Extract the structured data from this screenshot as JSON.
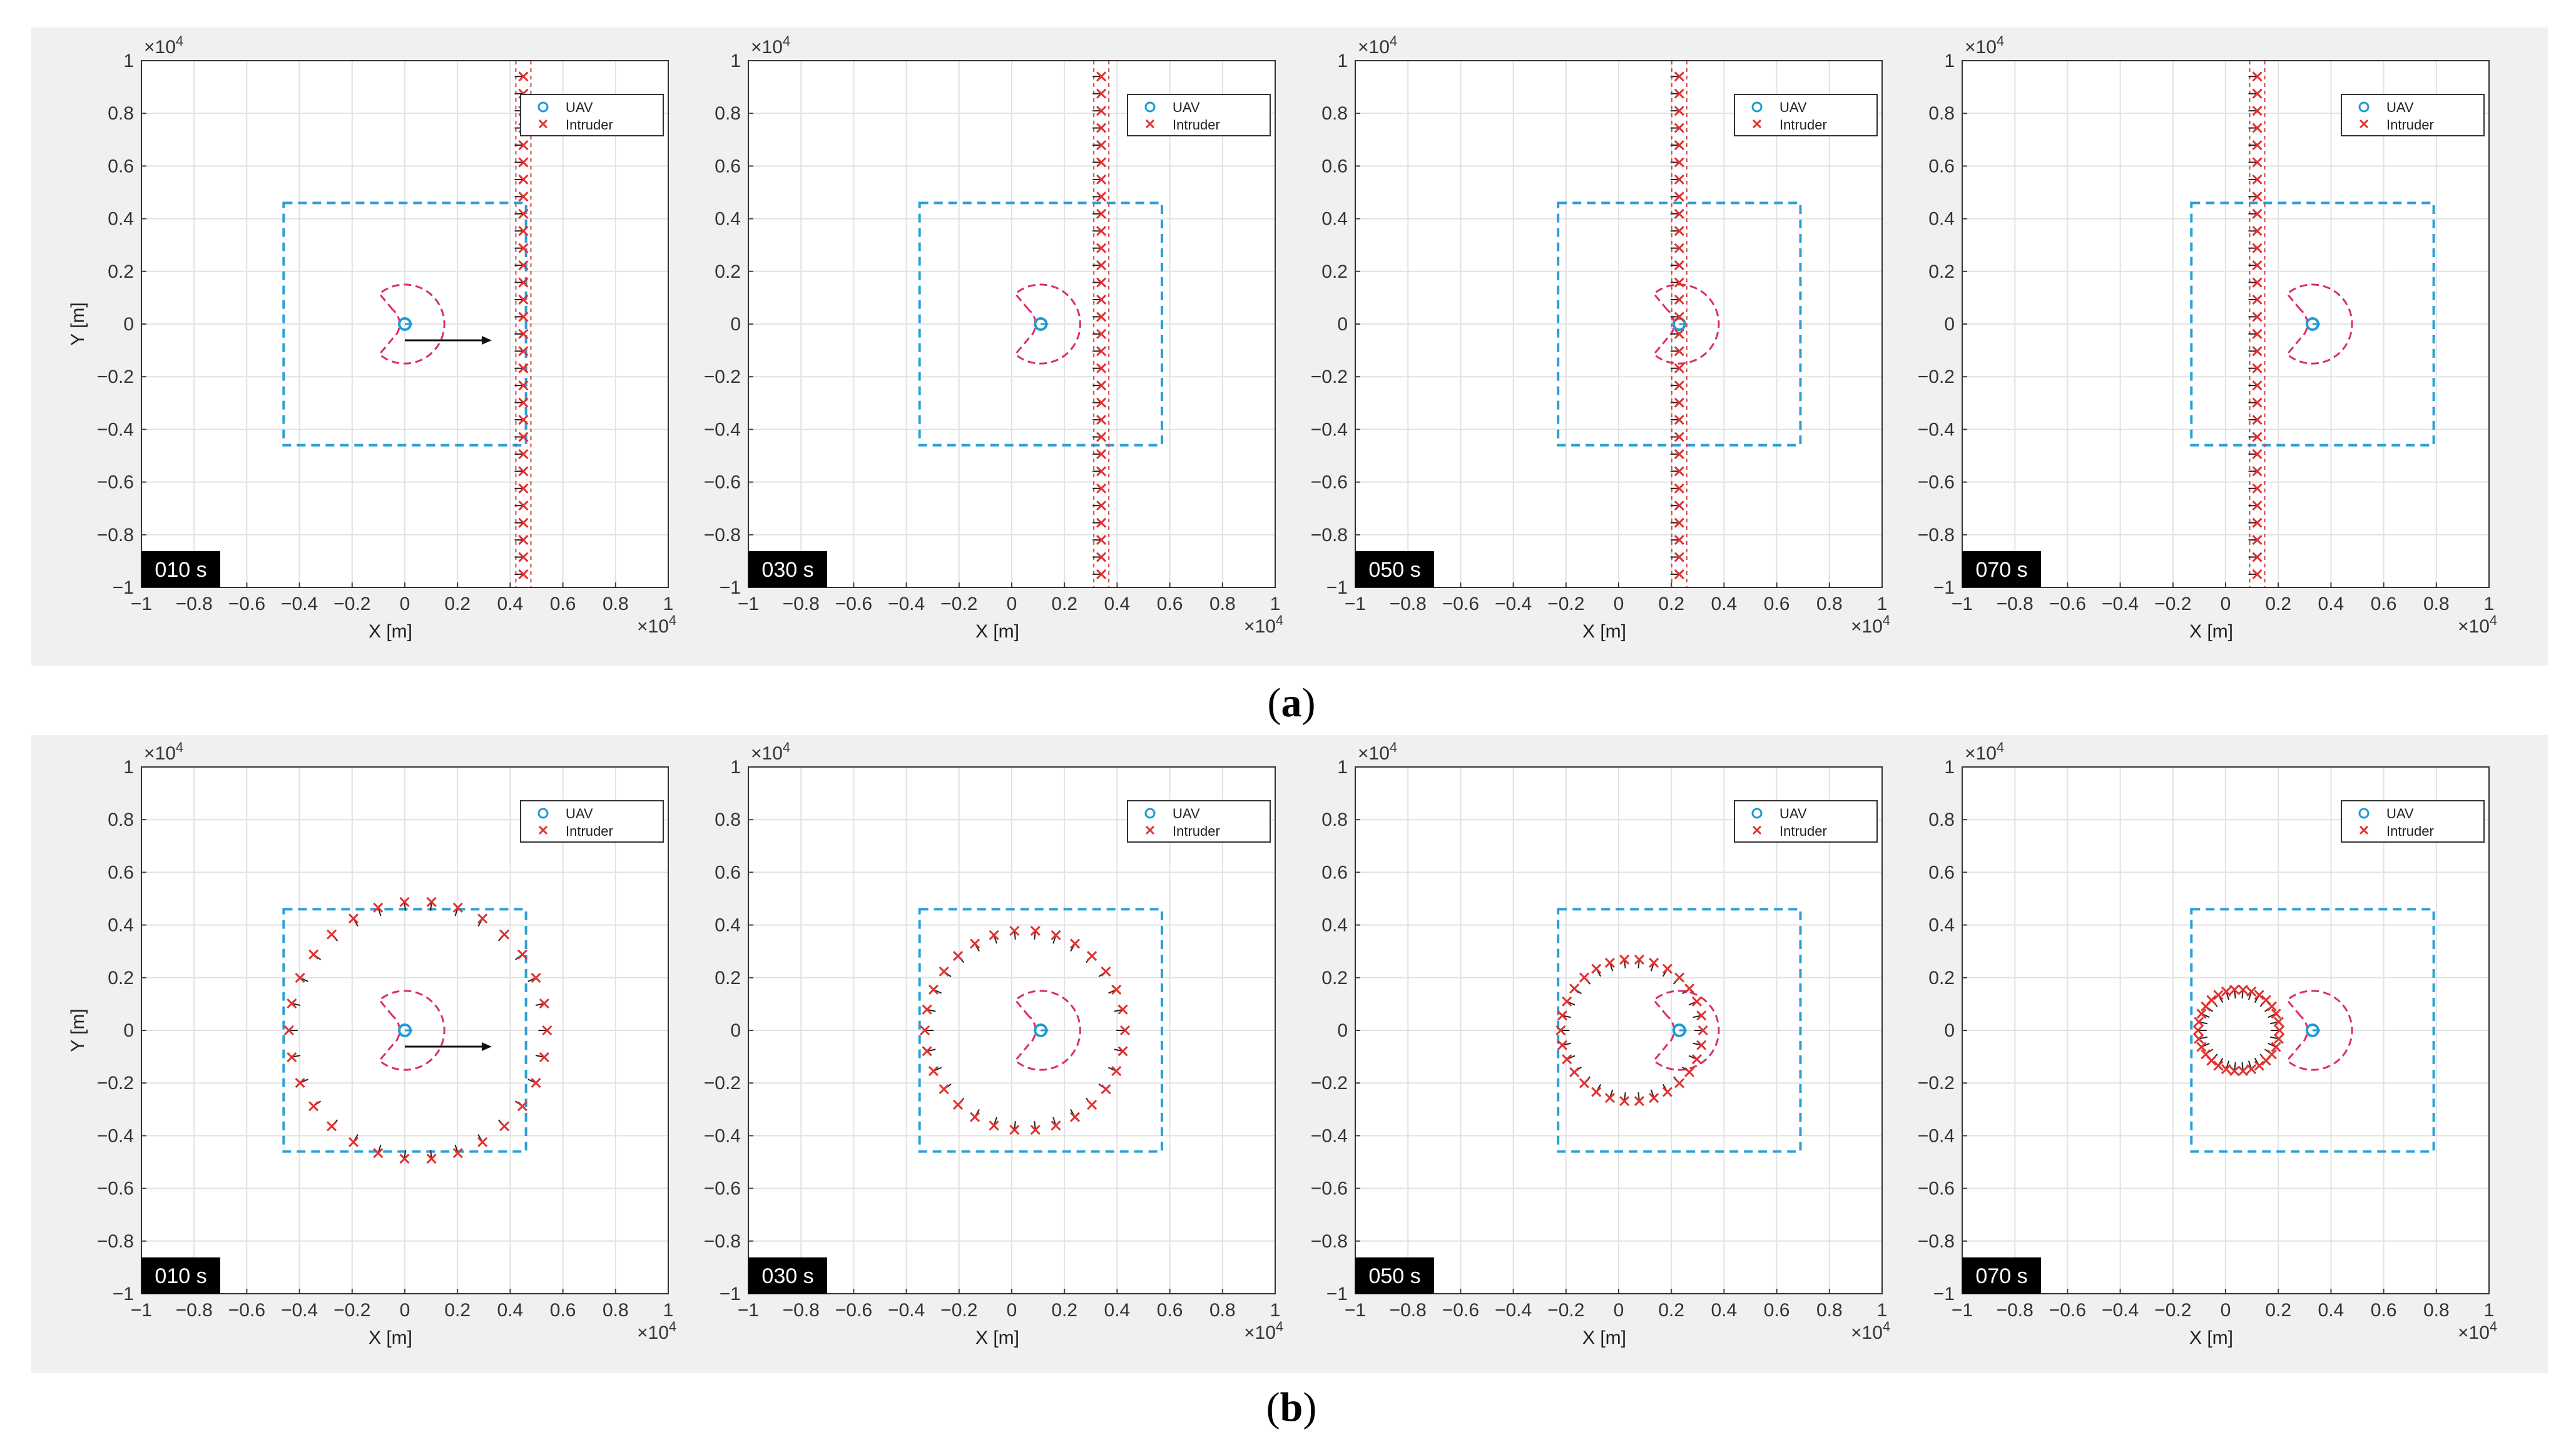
{
  "figure": {
    "row_a": {
      "label_open": "(",
      "label_letter": "a",
      "label_close": ")"
    },
    "row_b": {
      "label_open": "(",
      "label_letter": "b",
      "label_close": ")"
    }
  },
  "colors": {
    "uav": "#1f9bd6",
    "intruder": "#e03030",
    "zone": "#2aa0d8",
    "sensor": "#d8306a",
    "background": "#f0f0f0"
  },
  "axes_common": {
    "xlabel": "X   [m]",
    "ylabel": "Y   [m]",
    "x_exponent": "×10",
    "x_exponent_power": "4",
    "y_exponent": "×10",
    "y_exponent_power": "4",
    "xticks": [
      "−1",
      "−0.8",
      "−0.6",
      "−0.4",
      "−0.2",
      "0",
      "0.2",
      "0.4",
      "0.6",
      "0.8",
      "1"
    ],
    "yticks": [
      "1",
      "0.8",
      "0.6",
      "0.4",
      "0.2",
      "0",
      "−0.2",
      "−0.4",
      "−0.6",
      "−0.8",
      "−1"
    ],
    "legend": [
      {
        "label": "UAV",
        "marker": "circle"
      },
      {
        "label": "Intruder",
        "marker": "x"
      }
    ],
    "grid": true,
    "legend_position": "top-right"
  },
  "chart_data": [
    {
      "row": "a",
      "type": "scatter",
      "time_label": "010 s",
      "xlim": [
        -1,
        1
      ],
      "ylim": [
        -1,
        1
      ],
      "unit_scale": 10000,
      "uav": [
        0.0,
        0.0
      ],
      "heading_arrow": true,
      "zone_center_x": 0.0,
      "zone_half": 0.46,
      "intruder_formation": "line",
      "intruder_x": 0.45,
      "intruder_y_range": [
        -0.95,
        0.94
      ],
      "intruder_count": 30
    },
    {
      "row": "a",
      "type": "scatter",
      "time_label": "030 s",
      "xlim": [
        -1,
        1
      ],
      "ylim": [
        -1,
        1
      ],
      "unit_scale": 10000,
      "uav": [
        0.11,
        0.0
      ],
      "heading_arrow": false,
      "zone_center_x": 0.11,
      "zone_half": 0.46,
      "intruder_formation": "line",
      "intruder_x": 0.34,
      "intruder_y_range": [
        -0.95,
        0.94
      ],
      "intruder_count": 30
    },
    {
      "row": "a",
      "type": "scatter",
      "time_label": "050 s",
      "xlim": [
        -1,
        1
      ],
      "ylim": [
        -1,
        1
      ],
      "unit_scale": 10000,
      "uav": [
        0.23,
        0.0
      ],
      "heading_arrow": false,
      "zone_center_x": 0.23,
      "zone_half": 0.46,
      "intruder_formation": "line",
      "intruder_x": 0.23,
      "intruder_y_range": [
        -0.95,
        0.94
      ],
      "intruder_count": 30
    },
    {
      "row": "a",
      "type": "scatter",
      "time_label": "070 s",
      "xlim": [
        -1,
        1
      ],
      "ylim": [
        -1,
        1
      ],
      "unit_scale": 10000,
      "uav": [
        0.33,
        0.0
      ],
      "heading_arrow": false,
      "zone_center_x": 0.33,
      "zone_half": 0.46,
      "intruder_formation": "line",
      "intruder_x": 0.12,
      "intruder_y_range": [
        -0.95,
        0.94
      ],
      "intruder_count": 30
    },
    {
      "row": "b",
      "type": "scatter",
      "time_label": "010 s",
      "xlim": [
        -1,
        1
      ],
      "ylim": [
        -1,
        1
      ],
      "unit_scale": 10000,
      "uav": [
        0.0,
        0.0
      ],
      "heading_arrow": true,
      "zone_center_x": 0.0,
      "zone_half": 0.46,
      "intruder_formation": "circle",
      "circle_center": [
        0.05,
        0.0
      ],
      "circle_radius": 0.49,
      "intruder_count": 30
    },
    {
      "row": "b",
      "type": "scatter",
      "time_label": "030 s",
      "xlim": [
        -1,
        1
      ],
      "ylim": [
        -1,
        1
      ],
      "unit_scale": 10000,
      "uav": [
        0.11,
        0.0
      ],
      "heading_arrow": false,
      "zone_center_x": 0.11,
      "zone_half": 0.46,
      "intruder_formation": "circle",
      "circle_center": [
        0.05,
        0.0
      ],
      "circle_radius": 0.38,
      "intruder_count": 30
    },
    {
      "row": "b",
      "type": "scatter",
      "time_label": "050 s",
      "xlim": [
        -1,
        1
      ],
      "ylim": [
        -1,
        1
      ],
      "unit_scale": 10000,
      "uav": [
        0.23,
        0.0
      ],
      "heading_arrow": false,
      "zone_center_x": 0.23,
      "zone_half": 0.46,
      "intruder_formation": "circle",
      "circle_center": [
        0.05,
        0.0
      ],
      "circle_radius": 0.27,
      "intruder_count": 30
    },
    {
      "row": "b",
      "type": "scatter",
      "time_label": "070 s",
      "xlim": [
        -1,
        1
      ],
      "ylim": [
        -1,
        1
      ],
      "unit_scale": 10000,
      "uav": [
        0.33,
        0.0
      ],
      "heading_arrow": false,
      "zone_center_x": 0.33,
      "zone_half": 0.46,
      "intruder_formation": "circle",
      "circle_center": [
        0.05,
        0.0
      ],
      "circle_radius": 0.155,
      "intruder_count": 30
    }
  ]
}
